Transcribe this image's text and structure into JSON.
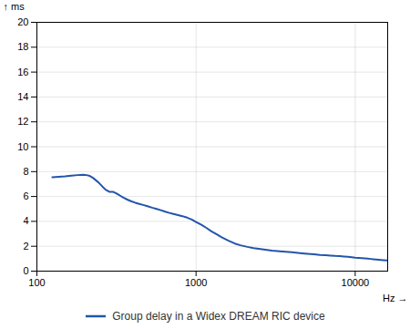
{
  "chart_data": {
    "type": "line",
    "xlabel": "Hz",
    "ylabel": "ms",
    "log": "x",
    "grid": true,
    "legend": "bottom",
    "xlim": [
      100,
      16000
    ],
    "ylim": [
      0,
      20
    ],
    "xticks": [
      100,
      1000,
      10000
    ],
    "yticks": [
      0,
      2,
      4,
      6,
      8,
      10,
      12,
      14,
      16,
      18,
      20
    ],
    "x": [
      125,
      150,
      165,
      180,
      195,
      205,
      215,
      225,
      235,
      245,
      258,
      270,
      285,
      300,
      315,
      330,
      350,
      370,
      390,
      415,
      440,
      465,
      495,
      530,
      565,
      600,
      640,
      680,
      720,
      770,
      820,
      880,
      940,
      1000,
      1080,
      1160,
      1250,
      1350,
      1450,
      1600,
      1750,
      1900,
      2100,
      2300,
      2600,
      3000,
      3500,
      4000,
      4500,
      5000,
      5500,
      6000,
      6500,
      7000,
      7500,
      8000,
      8500,
      9000,
      9500,
      10000,
      10500,
      11000,
      11500,
      12000,
      12500,
      13000,
      13500,
      14000,
      15000,
      16000
    ],
    "series": [
      {
        "name": "Group delay in a Widex DREAM RIC device",
        "color": "#2255aa",
        "values": [
          7.55,
          7.62,
          7.68,
          7.72,
          7.75,
          7.72,
          7.65,
          7.5,
          7.3,
          7.1,
          6.8,
          6.55,
          6.38,
          6.38,
          6.25,
          6.1,
          5.9,
          5.75,
          5.62,
          5.5,
          5.4,
          5.32,
          5.22,
          5.1,
          5.0,
          4.9,
          4.78,
          4.68,
          4.6,
          4.5,
          4.42,
          4.3,
          4.15,
          3.95,
          3.72,
          3.48,
          3.2,
          2.95,
          2.72,
          2.45,
          2.22,
          2.08,
          1.95,
          1.85,
          1.75,
          1.65,
          1.58,
          1.52,
          1.45,
          1.4,
          1.35,
          1.3,
          1.28,
          1.25,
          1.22,
          1.2,
          1.18,
          1.15,
          1.12,
          1.08,
          1.06,
          1.04,
          1.02,
          1.0,
          0.98,
          0.96,
          0.94,
          0.92,
          0.88,
          0.85
        ]
      }
    ]
  }
}
